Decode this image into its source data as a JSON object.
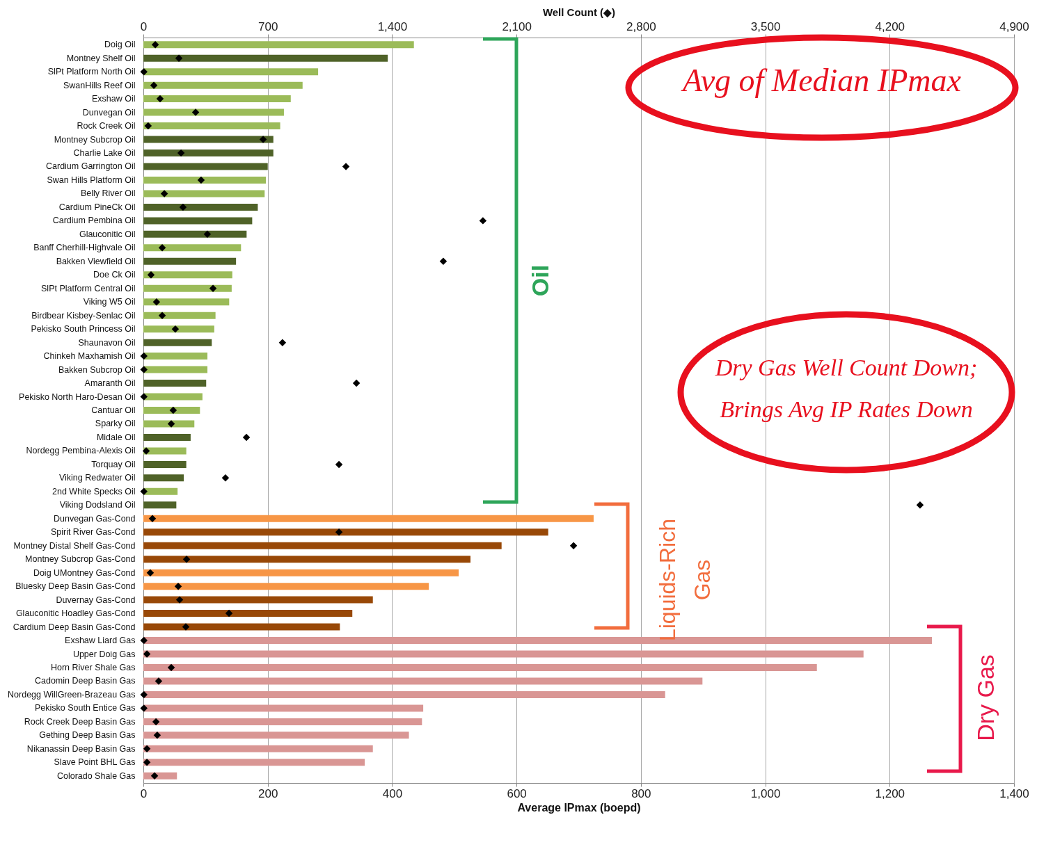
{
  "chart_data": {
    "type": "bar",
    "orientation": "horizontal",
    "xlabel": "Average IPmax (boepd)",
    "x2label": "Well Count (◆)",
    "categories": [
      "Doig Oil",
      "Montney Shelf Oil",
      "SlPt Platform North Oil",
      "SwanHills Reef Oil",
      "Exshaw Oil",
      "Dunvegan Oil",
      "Rock Creek Oil",
      "Montney Subcrop Oil",
      "Charlie Lake Oil",
      "Cardium Garrington Oil",
      "Swan Hills Platform Oil",
      "Belly River Oil",
      "Cardium PineCk Oil",
      "Cardium Pembina Oil",
      "Glauconitic Oil",
      "Banff Cherhill-Highvale Oil",
      "Bakken Viewfield Oil",
      "Doe Ck Oil",
      "SlPt Platform Central Oil",
      "Viking W5 Oil",
      "Birdbear Kisbey-Senlac Oil",
      "Pekisko South Princess Oil",
      "Shaunavon Oil",
      "Chinkeh Maxhamish Oil",
      "Bakken Subcrop Oil",
      "Amaranth Oil",
      "Pekisko North Haro-Desan Oil",
      "Cantuar Oil",
      "Sparky Oil",
      "Midale Oil",
      "Nordegg Pembina-Alexis Oil",
      "Torquay Oil",
      "Viking Redwater Oil",
      "2nd White Specks Oil",
      "Viking Dodsland Oil",
      "Dunvegan Gas-Cond",
      "Spirit River Gas-Cond",
      "Montney Distal Shelf Gas-Cond",
      "Montney Subcrop Gas-Cond",
      "Doig UMontney Gas-Cond",
      "Bluesky Deep Basin Gas-Cond",
      "Duvernay Gas-Cond",
      "Glauconitic Hoadley Gas-Cond",
      "Cardium Deep Basin Gas-Cond",
      "Exshaw Liard Gas",
      "Upper Doig Gas",
      "Horn River Shale Gas",
      "Cadomin Deep Basin Gas",
      "Nordegg WillGreen-Brazeau Gas",
      "Pekisko South Entice Gas",
      "Rock Creek Deep Basin  Gas",
      "Gething Deep Basin Gas",
      "Nikanassin Deep Basin Gas",
      "Slave Point BHL Gas",
      "Colorado Shale Gas"
    ],
    "series": [
      {
        "values": [
          435,
          393,
          281,
          256,
          237,
          226,
          220,
          209,
          209,
          200,
          197,
          195,
          184,
          175,
          166,
          157,
          149,
          143,
          142,
          138,
          116,
          114,
          110,
          103,
          103,
          101,
          95,
          91,
          82,
          76,
          69,
          69,
          65,
          55,
          53,
          724,
          651,
          576,
          526,
          507,
          459,
          369,
          336,
          316,
          1268,
          1158,
          1083,
          899,
          839,
          450,
          448,
          427,
          369,
          356,
          54
        ],
        "colors": [
          "#9bbb59",
          "#4f6228",
          "#9bbb59",
          "#9bbb59",
          "#9bbb59",
          "#9bbb59",
          "#9bbb59",
          "#4f6228",
          "#4f6228",
          "#4f6228",
          "#9bbb59",
          "#9bbb59",
          "#4f6228",
          "#4f6228",
          "#4f6228",
          "#9bbb59",
          "#4f6228",
          "#9bbb59",
          "#9bbb59",
          "#9bbb59",
          "#9bbb59",
          "#9bbb59",
          "#4f6228",
          "#9bbb59",
          "#9bbb59",
          "#4f6228",
          "#9bbb59",
          "#9bbb59",
          "#9bbb59",
          "#4f6228",
          "#9bbb59",
          "#4f6228",
          "#4f6228",
          "#9bbb59",
          "#4f6228",
          "#f79646",
          "#984807",
          "#984807",
          "#984807",
          "#f79646",
          "#f79646",
          "#984807",
          "#984807",
          "#984807",
          "#d99694",
          "#d99694",
          "#d99694",
          "#d99694",
          "#d99694",
          "#d99694",
          "#d99694",
          "#d99694",
          "#d99694",
          "#d99694",
          "#d99694"
        ]
      },
      {
        "type": "scatter",
        "axis": "x2",
        "color": "#000000",
        "values": [
          67,
          200,
          3,
          59,
          94,
          294,
          27,
          674,
          212,
          1140,
          325,
          118,
          223,
          1911,
          360,
          106,
          1688,
          43,
          392,
          74,
          106,
          180,
          783,
          3,
          3,
          1199,
          3,
          168,
          157,
          580,
          16,
          1101,
          462,
          3,
          4371,
          51,
          1101,
          2421,
          243,
          39,
          196,
          204,
          482,
          239,
          3,
          20,
          157,
          86,
          3,
          3,
          71,
          78,
          20,
          20,
          63
        ]
      }
    ],
    "xlim": [
      0,
      1400
    ],
    "xticks": [
      {
        "value": 0,
        "label": "0"
      },
      {
        "value": 200,
        "label": "200"
      },
      {
        "value": 400,
        "label": "400"
      },
      {
        "value": 600,
        "label": "600"
      },
      {
        "value": 800,
        "label": "800"
      },
      {
        "value": 1000,
        "label": "1,000"
      },
      {
        "value": 1200,
        "label": "1,200"
      },
      {
        "value": 1400,
        "label": "1,400"
      }
    ],
    "x2lim": [
      0,
      4900
    ],
    "x2ticks": [
      {
        "value": 0,
        "label": "0"
      },
      {
        "value": 700,
        "label": "700"
      },
      {
        "value": 1400,
        "label": "1,400"
      },
      {
        "value": 2100,
        "label": "2,100"
      },
      {
        "value": 2800,
        "label": "2,800"
      },
      {
        "value": 3500,
        "label": "3,500"
      },
      {
        "value": 4200,
        "label": "4,200"
      },
      {
        "value": 4900,
        "label": "4,900"
      }
    ],
    "grid": "x",
    "marker": "diamond",
    "annotations": [
      "Avg of Median IPmax",
      "Dry Gas Well Count Down; Brings Avg IP Rates Down",
      "Oil",
      "Liquids-Rich Gas",
      "Dry Gas"
    ]
  }
}
